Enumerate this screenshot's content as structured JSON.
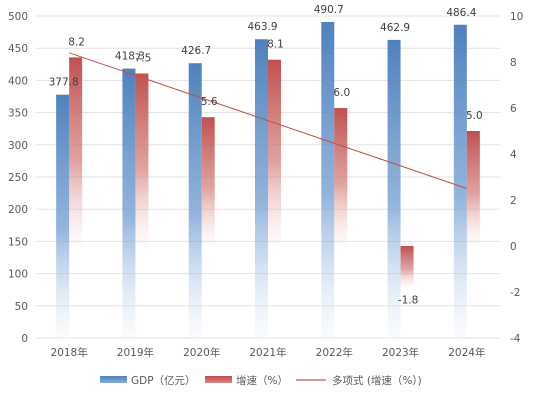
{
  "chart_data": {
    "type": "bar",
    "categories": [
      "2018年",
      "2019年",
      "2020年",
      "2021年",
      "2022年",
      "2023年",
      "2024年"
    ],
    "series": [
      {
        "name": "GDP（亿元）",
        "axis": "left",
        "values": [
          377.8,
          418.3,
          426.7,
          463.9,
          490.7,
          462.9,
          486.4
        ],
        "color": "#4f81bd"
      },
      {
        "name": "增速（%）",
        "axis": "right",
        "values": [
          8.2,
          7.5,
          5.6,
          8.1,
          6.0,
          -1.8,
          5.0
        ],
        "color": "#c0504d"
      }
    ],
    "trendline": {
      "name": "多项式 (增速（%）)",
      "type": "linear",
      "start": 8.4,
      "end": 2.5,
      "color": "#c0504d"
    },
    "value_labels": [
      "377.8",
      "418.3",
      "426.7",
      "463.9",
      "490.7",
      "462.9",
      "486.4"
    ],
    "rate_labels": [
      "8.2",
      "7.5",
      "5.6",
      "8.1",
      "6.0",
      "-1.8",
      "5.0"
    ],
    "y_left": {
      "min": 0,
      "max": 500,
      "step": 50,
      "ticks": [
        "0",
        "50",
        "100",
        "150",
        "200",
        "250",
        "300",
        "350",
        "400",
        "450",
        "500"
      ]
    },
    "y_right": {
      "min": -4,
      "max": 10,
      "step": 2,
      "ticks": [
        "-4",
        "-2",
        "0",
        "2",
        "4",
        "6",
        "8",
        "10"
      ]
    },
    "grid": true,
    "legend": {
      "position": "bottom",
      "items": [
        "GDP（亿元）",
        "增速（%）",
        "多项式 (增速（%）)"
      ]
    }
  }
}
